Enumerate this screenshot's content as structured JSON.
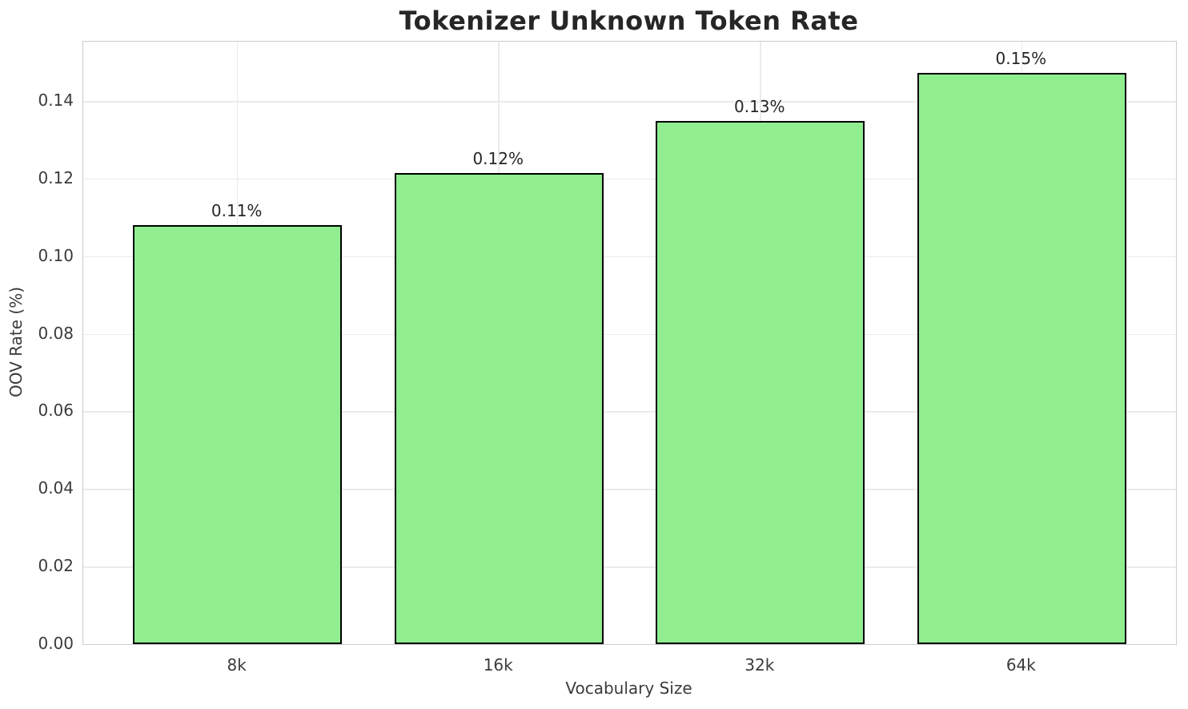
{
  "chart_data": {
    "type": "bar",
    "title": "Tokenizer Unknown Token Rate",
    "xlabel": "Vocabulary Size",
    "ylabel": "OOV Rate (%)",
    "categories": [
      "8k",
      "16k",
      "32k",
      "64k"
    ],
    "values": [
      0.108,
      0.1215,
      0.1349,
      0.1473
    ],
    "bar_labels": [
      "0.11%",
      "0.12%",
      "0.13%",
      "0.15%"
    ],
    "ylim": [
      0,
      0.1553
    ],
    "yticks": [
      0.0,
      0.02,
      0.04,
      0.06,
      0.08,
      0.1,
      0.12,
      0.14
    ],
    "ytick_labels": [
      "0.00",
      "0.02",
      "0.04",
      "0.06",
      "0.08",
      "0.10",
      "0.12",
      "0.14"
    ],
    "grid": true,
    "legend": false,
    "bar_width_fraction": 0.8,
    "colors": {
      "bar_fill": "#90EE90",
      "bar_edge": "#000000",
      "grid": "#ebebeb",
      "spine": "#cdcdcd",
      "title_text": "#262626",
      "tick_text": "#3b3b3b"
    }
  }
}
